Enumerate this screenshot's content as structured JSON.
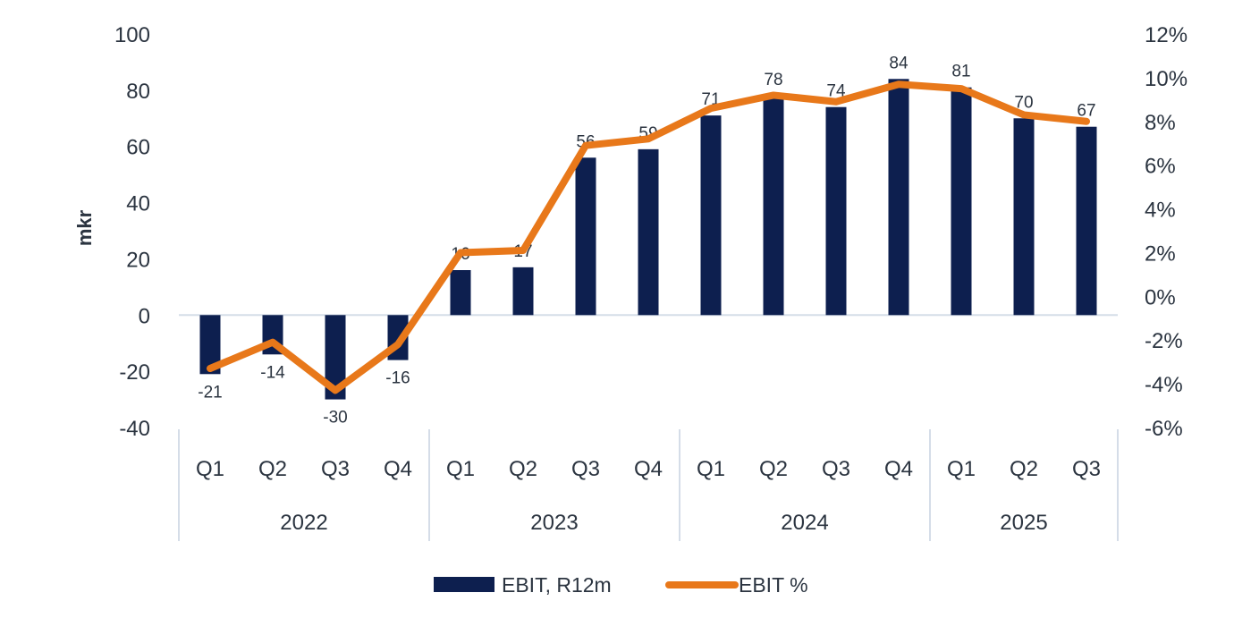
{
  "chart_data": {
    "type": "bar",
    "combo": true,
    "title": "",
    "ylabel": "mkr",
    "y2label": "",
    "ylim": [
      -40,
      100
    ],
    "yticks": [
      100,
      80,
      60,
      40,
      20,
      0,
      -20,
      -40
    ],
    "y2lim": [
      -6,
      12
    ],
    "y2ticks": [
      "12%",
      "10%",
      "8%",
      "6%",
      "4%",
      "2%",
      "0%",
      "-2%",
      "-4%",
      "-6%"
    ],
    "y2tick_values": [
      12,
      10,
      8,
      6,
      4,
      2,
      0,
      -2,
      -4,
      -6
    ],
    "categories": [
      "Q1",
      "Q2",
      "Q3",
      "Q4",
      "Q1",
      "Q2",
      "Q3",
      "Q4",
      "Q1",
      "Q2",
      "Q3",
      "Q4",
      "Q1",
      "Q2",
      "Q3"
    ],
    "groups": [
      {
        "label": "2022",
        "count": 4
      },
      {
        "label": "2023",
        "count": 4
      },
      {
        "label": "2024",
        "count": 4
      },
      {
        "label": "2025",
        "count": 3
      }
    ],
    "series": [
      {
        "name": "EBIT, R12m",
        "type": "bar",
        "axis": "left",
        "color": "#0d1f4f",
        "values": [
          -21,
          -14,
          -30,
          -16,
          16,
          17,
          56,
          59,
          71,
          78,
          74,
          84,
          81,
          70,
          67
        ],
        "labels": [
          "-21",
          "-14",
          "-30",
          "-16",
          "16",
          "17",
          "56",
          "59",
          "71",
          "78",
          "74",
          "84",
          "81",
          "70",
          "67"
        ]
      },
      {
        "name": "EBIT %",
        "type": "line",
        "axis": "right",
        "color": "#e8781a",
        "values": [
          -3.3,
          -2.1,
          -4.3,
          -2.2,
          2.0,
          2.1,
          6.9,
          7.2,
          8.6,
          9.2,
          8.9,
          9.7,
          9.5,
          8.3,
          8.0
        ]
      }
    ],
    "legend": {
      "position": "bottom",
      "items": [
        "EBIT, R12m",
        "EBIT %"
      ]
    },
    "grid": false
  }
}
